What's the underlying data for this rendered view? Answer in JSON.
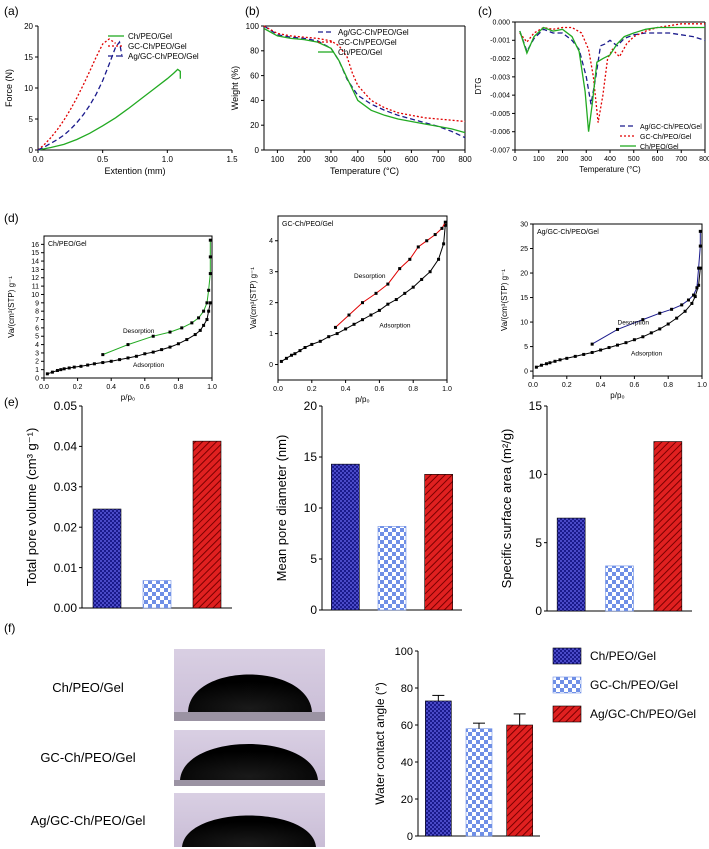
{
  "colors": {
    "blue": "#1a1a8c",
    "green": "#22aa22",
    "red": "#e00000",
    "check": "#6f8fe6",
    "darkred": "#b01010"
  },
  "panel_labels": [
    "(a)",
    "(b)",
    "(c)",
    "(d)",
    "(e)",
    "(f)"
  ],
  "chart_data": [
    {
      "id": "a",
      "type": "line",
      "xlabel": "Extention (mm)",
      "ylabel": "Force (N)",
      "xlim": [
        0,
        1.5
      ],
      "ylim": [
        0,
        20
      ],
      "xticks": [
        "0.0",
        "0.5",
        "1.0",
        "1.5"
      ],
      "yticks": [
        "0",
        "5",
        "10",
        "15",
        "20"
      ],
      "legend": [
        "Ch/PEO/Gel",
        "GC-Ch/PEO/Gel",
        "Ag/GC-Ch/PEO/Gel"
      ],
      "series": [
        {
          "name": "Ch/PEO/Gel",
          "style": "solid",
          "color": "#22aa22",
          "x": [
            0,
            0.1,
            0.2,
            0.3,
            0.4,
            0.5,
            0.6,
            0.7,
            0.8,
            0.9,
            1.0,
            1.05,
            1.08,
            1.1,
            1.1
          ],
          "y": [
            0,
            0.4,
            0.9,
            1.7,
            2.7,
            3.9,
            5.2,
            6.7,
            8.3,
            9.9,
            11.5,
            12.4,
            13.0,
            12.7,
            11.5
          ]
        },
        {
          "name": "GC-Ch/PEO/Gel",
          "style": "dotted",
          "color": "#e00000",
          "x": [
            0,
            0.05,
            0.1,
            0.15,
            0.2,
            0.25,
            0.3,
            0.35,
            0.4,
            0.45,
            0.5,
            0.55,
            0.58,
            0.6
          ],
          "y": [
            0,
            0.9,
            2.0,
            3.3,
            4.8,
            6.5,
            8.4,
            10.5,
            12.7,
            15.0,
            17.1,
            17.9,
            17.5,
            17.2
          ]
        },
        {
          "name": "Ag/GC-Ch/PEO/Gel",
          "style": "dashed",
          "color": "#1a1a8c",
          "x": [
            0,
            0.05,
            0.1,
            0.15,
            0.2,
            0.25,
            0.3,
            0.35,
            0.4,
            0.45,
            0.5,
            0.55,
            0.6,
            0.63,
            0.65
          ],
          "y": [
            0,
            0.5,
            1.1,
            1.7,
            2.4,
            3.3,
            4.4,
            5.7,
            7.2,
            9.0,
            11.2,
            13.8,
            16.6,
            17.4,
            15.0
          ]
        }
      ]
    },
    {
      "id": "b",
      "type": "line",
      "xlabel": "Temperature (°C)",
      "ylabel": "Weight (%)",
      "xlim": [
        50,
        800
      ],
      "ylim": [
        0,
        100
      ],
      "xticks": [
        "100",
        "200",
        "300",
        "400",
        "500",
        "600",
        "700",
        "800"
      ],
      "yticks": [
        "0",
        "20",
        "40",
        "60",
        "80",
        "100"
      ],
      "legend": [
        "Ag/GC-Ch/PEO/Gel",
        "GC-Ch/PEO/Gel",
        "Ch/PEO/Gel"
      ],
      "series": [
        {
          "name": "Ag/GC-Ch/PEO/Gel",
          "style": "dashed",
          "color": "#1a1a8c",
          "x": [
            50,
            100,
            150,
            200,
            250,
            300,
            330,
            360,
            400,
            450,
            500,
            550,
            600,
            650,
            700,
            750,
            800
          ],
          "y": [
            100,
            93,
            91,
            90,
            88,
            82,
            72,
            57,
            44,
            37,
            32,
            28,
            25,
            22,
            19,
            15,
            10
          ]
        },
        {
          "name": "GC-Ch/PEO/Gel",
          "style": "dotted",
          "color": "#e00000",
          "x": [
            50,
            100,
            150,
            200,
            250,
            300,
            330,
            360,
            380,
            400,
            450,
            500,
            550,
            600,
            650,
            700,
            750,
            800
          ],
          "y": [
            100,
            94,
            92,
            91,
            90,
            88,
            84,
            75,
            62,
            52,
            40,
            34,
            30,
            28,
            26,
            25,
            24,
            23
          ]
        },
        {
          "name": "Ch/PEO/Gel",
          "style": "solid",
          "color": "#22aa22",
          "x": [
            50,
            100,
            150,
            200,
            250,
            300,
            330,
            360,
            400,
            450,
            500,
            550,
            600,
            650,
            700,
            750,
            800
          ],
          "y": [
            98,
            92,
            90,
            89,
            87,
            82,
            72,
            58,
            40,
            32,
            28,
            25,
            23,
            21,
            19,
            17,
            14
          ]
        }
      ]
    },
    {
      "id": "c",
      "type": "line",
      "xlabel": "Temperature (°C)",
      "ylabel": "DTG",
      "xlim": [
        0,
        800
      ],
      "ylim": [
        -0.007,
        0
      ],
      "xticks": [
        "0",
        "100",
        "200",
        "300",
        "400",
        "500",
        "600",
        "700",
        "800"
      ],
      "yticks": [
        "-0.007",
        "-0.006",
        "-0.005",
        "-0.004",
        "-0.003",
        "-0.002",
        "-0.001",
        "0.000"
      ],
      "legend": [
        "Ag/GC-Ch/PEO/Gel",
        "GC-Ch/PEO/Gel",
        "Ch/PEO/Gel"
      ],
      "series": [
        {
          "name": "Ag/GC-Ch/PEO/Gel",
          "style": "dashed",
          "color": "#1a1a8c",
          "x": [
            20,
            50,
            80,
            120,
            160,
            200,
            240,
            270,
            300,
            320,
            340,
            360,
            380,
            400,
            430,
            460,
            500,
            550,
            600,
            650,
            700,
            750,
            800
          ],
          "y": [
            -0.0005,
            -0.0016,
            -0.0009,
            -0.0004,
            -0.0006,
            -0.0006,
            -0.001,
            -0.0015,
            -0.003,
            -0.0045,
            -0.003,
            -0.0013,
            -0.0012,
            -0.001,
            -0.0013,
            -0.0009,
            -0.0007,
            -0.0006,
            -0.0006,
            -0.0006,
            -0.0007,
            -0.0008,
            -0.001
          ]
        },
        {
          "name": "GC-Ch/PEO/Gel",
          "style": "dotted",
          "color": "#e00000",
          "x": [
            20,
            50,
            80,
            120,
            160,
            200,
            240,
            280,
            310,
            330,
            350,
            370,
            390,
            410,
            440,
            470,
            500,
            550,
            600,
            650,
            700,
            750,
            800
          ],
          "y": [
            -0.0006,
            -0.0011,
            -0.0006,
            -0.0003,
            -0.0004,
            -0.0003,
            -0.0003,
            -0.0006,
            -0.0015,
            -0.003,
            -0.0055,
            -0.004,
            -0.002,
            -0.0015,
            -0.0019,
            -0.0012,
            -0.0008,
            -0.0005,
            -0.0003,
            -0.0002,
            -0.0001,
            -0.0001,
            -0.0001
          ]
        },
        {
          "name": "Ch/PEO/Gel",
          "style": "solid",
          "color": "#22aa22",
          "x": [
            20,
            50,
            80,
            120,
            160,
            200,
            240,
            270,
            295,
            310,
            325,
            345,
            370,
            400,
            430,
            460,
            500,
            550,
            600,
            650,
            700,
            750,
            800
          ],
          "y": [
            -0.0005,
            -0.0017,
            -0.0008,
            -0.0003,
            -0.0005,
            -0.0004,
            -0.0008,
            -0.0016,
            -0.0038,
            -0.006,
            -0.0045,
            -0.0022,
            -0.002,
            -0.0018,
            -0.0012,
            -0.0008,
            -0.0006,
            -0.0004,
            -0.0003,
            -0.0003,
            -0.0003,
            -0.0003,
            -0.0003
          ]
        }
      ]
    },
    {
      "id": "d1",
      "type": "scatter",
      "title": "Ch/PEO/Gel",
      "xlabel": "p/p₀",
      "ylabel": "Va/(cm³(STP) g⁻¹",
      "xlim": [
        0,
        1
      ],
      "ylim": [
        0,
        17
      ],
      "xticks": [
        "0.0",
        "0.2",
        "0.4",
        "0.6",
        "0.8",
        "1.0"
      ],
      "yticks": [
        "0",
        "1",
        "2",
        "3",
        "4",
        "5",
        "6",
        "7",
        "8",
        "9",
        "10",
        "11",
        "12",
        "13",
        "14",
        "15",
        "16"
      ],
      "annotations": [
        "Desorption",
        "Adsorption"
      ],
      "series": [
        {
          "name": "Adsorption",
          "color": "#000000",
          "x": [
            0.02,
            0.05,
            0.08,
            0.1,
            0.12,
            0.15,
            0.18,
            0.22,
            0.26,
            0.3,
            0.35,
            0.4,
            0.45,
            0.5,
            0.55,
            0.6,
            0.65,
            0.7,
            0.75,
            0.8,
            0.85,
            0.9,
            0.93,
            0.95,
            0.97,
            0.98,
            0.99
          ],
          "y": [
            0.5,
            0.7,
            0.9,
            1.0,
            1.1,
            1.2,
            1.3,
            1.4,
            1.55,
            1.7,
            1.85,
            2.0,
            2.2,
            2.4,
            2.6,
            2.9,
            3.1,
            3.4,
            3.7,
            4.1,
            4.6,
            5.2,
            5.7,
            6.3,
            7.0,
            8.0,
            9.0
          ]
        },
        {
          "name": "Desorption",
          "color": "#22aa22",
          "x": [
            0.99,
            0.99,
            0.99,
            0.98,
            0.97,
            0.95,
            0.92,
            0.88,
            0.82,
            0.75,
            0.65,
            0.5,
            0.35
          ],
          "y": [
            16.5,
            14.5,
            12.5,
            10.5,
            9.0,
            8.0,
            7.2,
            6.6,
            6.0,
            5.5,
            5.0,
            4.0,
            2.8
          ]
        }
      ]
    },
    {
      "id": "d2",
      "type": "scatter",
      "title": "GC-Ch/PEO/Gel",
      "xlabel": "p/p₀",
      "ylabel": "Va/(cm³(STP) g⁻¹",
      "xlim": [
        0,
        1
      ],
      "ylim": [
        -0.5,
        4.8
      ],
      "xticks": [
        "0.0",
        "0.2",
        "0.4",
        "0.6",
        "0.8",
        "1.0"
      ],
      "yticks": [
        "0",
        "1",
        "2",
        "3",
        "4"
      ],
      "annotations": [
        "Desorption",
        "Adsorption"
      ],
      "series": [
        {
          "name": "Adsorption",
          "color": "#000000",
          "x": [
            0.02,
            0.05,
            0.08,
            0.1,
            0.13,
            0.16,
            0.2,
            0.25,
            0.3,
            0.35,
            0.4,
            0.45,
            0.5,
            0.55,
            0.6,
            0.65,
            0.7,
            0.75,
            0.8,
            0.85,
            0.9,
            0.95,
            0.98,
            0.99
          ],
          "y": [
            0.1,
            0.2,
            0.3,
            0.35,
            0.45,
            0.55,
            0.65,
            0.75,
            0.9,
            1.0,
            1.15,
            1.3,
            1.45,
            1.6,
            1.75,
            1.95,
            2.1,
            2.3,
            2.5,
            2.75,
            3.0,
            3.4,
            3.9,
            4.5
          ]
        },
        {
          "name": "Desorption",
          "color": "#e00000",
          "x": [
            0.99,
            0.97,
            0.93,
            0.88,
            0.83,
            0.78,
            0.72,
            0.65,
            0.58,
            0.5,
            0.42,
            0.34
          ],
          "y": [
            4.6,
            4.4,
            4.2,
            4.0,
            3.8,
            3.4,
            3.1,
            2.6,
            2.3,
            2.0,
            1.6,
            1.2
          ]
        }
      ]
    },
    {
      "id": "d3",
      "type": "scatter",
      "title": "Ag/GC-Ch/PEO/Gel",
      "xlabel": "p/p₀",
      "ylabel": "Va/(cm³(STP) g⁻¹",
      "xlim": [
        0,
        1
      ],
      "ylim": [
        -1,
        30
      ],
      "xticks": [
        "0.0",
        "0.2",
        "0.4",
        "0.6",
        "0.8",
        "1.0"
      ],
      "yticks": [
        "0",
        "5",
        "10",
        "15",
        "20",
        "25",
        "30"
      ],
      "annotations": [
        "Desorption",
        "Adsorption"
      ],
      "series": [
        {
          "name": "Adsorption",
          "color": "#000000",
          "x": [
            0.02,
            0.05,
            0.08,
            0.1,
            0.13,
            0.16,
            0.2,
            0.25,
            0.3,
            0.35,
            0.4,
            0.45,
            0.5,
            0.55,
            0.6,
            0.65,
            0.7,
            0.75,
            0.8,
            0.85,
            0.9,
            0.94,
            0.96,
            0.98,
            0.99
          ],
          "y": [
            0.8,
            1.2,
            1.5,
            1.7,
            2.0,
            2.3,
            2.6,
            3.0,
            3.4,
            3.8,
            4.3,
            4.8,
            5.3,
            5.8,
            6.4,
            7.0,
            7.8,
            8.6,
            9.6,
            10.8,
            12.2,
            13.8,
            15.2,
            17.5,
            21.0
          ]
        },
        {
          "name": "Desorption",
          "color": "#1a1a8c",
          "x": [
            0.99,
            0.99,
            0.98,
            0.97,
            0.95,
            0.92,
            0.88,
            0.82,
            0.75,
            0.65,
            0.5,
            0.35
          ],
          "y": [
            28.5,
            25.5,
            21.0,
            17.0,
            15.5,
            14.5,
            13.5,
            12.6,
            11.8,
            10.5,
            8.5,
            5.5
          ]
        }
      ]
    },
    {
      "id": "e1",
      "type": "bar",
      "ylabel": "Total pore volume (cm³ g⁻¹)",
      "ylim": [
        0,
        0.05
      ],
      "yticks": [
        "0.00",
        "0.01",
        "0.02",
        "0.03",
        "0.04",
        "0.05"
      ],
      "categories": [
        "Ch/PEO/Gel",
        "GC-Ch/PEO/Gel",
        "Ag/GC-Ch/PEO/Gel"
      ],
      "values": [
        0.0245,
        0.0068,
        0.0413
      ]
    },
    {
      "id": "e2",
      "type": "bar",
      "ylabel": "Mean pore diameter (nm)",
      "ylim": [
        0,
        20
      ],
      "yticks": [
        "0",
        "5",
        "10",
        "15",
        "20"
      ],
      "categories": [
        "Ch/PEO/Gel",
        "GC-Ch/PEO/Gel",
        "Ag/GC-Ch/PEO/Gel"
      ],
      "values": [
        14.3,
        8.2,
        13.3
      ]
    },
    {
      "id": "e3",
      "type": "bar",
      "ylabel": "Specific surface area (m²/g)",
      "ylim": [
        0,
        15
      ],
      "yticks": [
        "0",
        "5",
        "10",
        "15"
      ],
      "categories": [
        "Ch/PEO/Gel",
        "GC-Ch/PEO/Gel",
        "Ag/GC-Ch/PEO/Gel"
      ],
      "values": [
        6.8,
        3.3,
        12.4
      ]
    },
    {
      "id": "f",
      "type": "bar",
      "ylabel": "Water contact angle (°)",
      "ylim": [
        0,
        100
      ],
      "yticks": [
        "0",
        "20",
        "40",
        "60",
        "80",
        "100"
      ],
      "categories": [
        "Ch/PEO/Gel",
        "GC-Ch/PEO/Gel",
        "Ag/GC-Ch/PEO/Gel"
      ],
      "values": [
        73,
        58,
        60
      ],
      "errors": [
        3,
        3,
        6
      ],
      "legend": [
        "Ch/PEO/Gel",
        "GC-Ch/PEO/Gel",
        "Ag/GC-Ch/PEO/Gel"
      ]
    }
  ],
  "droplet_labels": [
    "Ch/PEO/Gel",
    "GC-Ch/PEO/Gel",
    "Ag/GC-Ch/PEO/Gel"
  ]
}
